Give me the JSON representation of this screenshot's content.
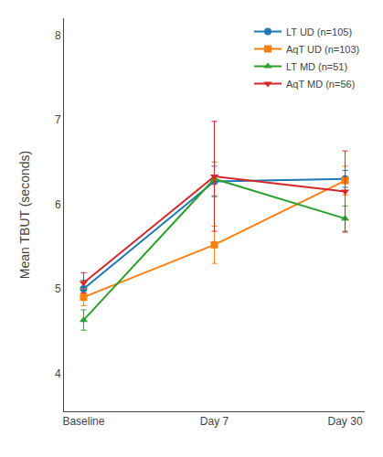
{
  "chart_data": {
    "type": "line",
    "categories": [
      "Baseline",
      "Day 7",
      "Day 30"
    ],
    "series": [
      {
        "name": "LT UD (n=105)",
        "values": [
          5.0,
          6.27,
          6.3
        ],
        "errors": [
          0.1,
          0.18,
          0.1
        ],
        "marker": "circle"
      },
      {
        "name": "AqT UD (n=103)",
        "values": [
          4.9,
          5.52,
          6.28
        ],
        "errors": [
          0.1,
          0.22,
          0.17
        ],
        "marker": "square"
      },
      {
        "name": "LT MD (n=51)",
        "values": [
          4.63,
          6.3,
          5.83
        ],
        "errors": [
          0.12,
          0.2,
          0.15
        ],
        "marker": "triangle-up"
      },
      {
        "name": "AqT MD (n=56)",
        "values": [
          5.07,
          6.33,
          6.15
        ],
        "errors": [
          0.12,
          0.65,
          0.48
        ],
        "marker": "triangle-down"
      }
    ],
    "ylabel": "Mean TBUT (seconds)",
    "ylim": [
      3.55,
      8.2
    ],
    "yticks": [
      4,
      5,
      6,
      7,
      8
    ],
    "grid": false,
    "legend": "upper right"
  }
}
